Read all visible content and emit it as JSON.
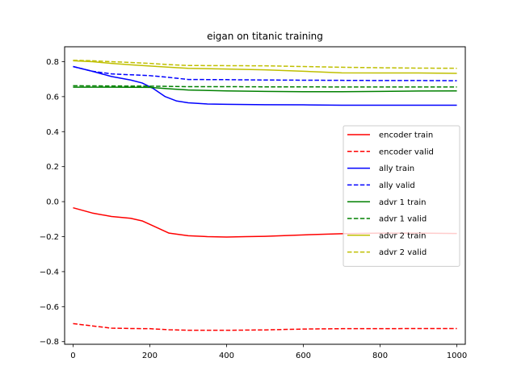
{
  "chart_data": {
    "type": "line",
    "title": "eigan on titanic training",
    "xlabel": "",
    "ylabel": "",
    "xlim": [
      -22,
      1022
    ],
    "ylim": [
      -0.815,
      0.885
    ],
    "xticks": [
      0,
      200,
      400,
      600,
      800,
      1000
    ],
    "yticks": [
      -0.8,
      -0.6,
      -0.4,
      -0.2,
      0.0,
      0.2,
      0.4,
      0.6,
      0.8
    ],
    "xtick_labels": [
      "0",
      "200",
      "400",
      "600",
      "800",
      "1000"
    ],
    "ytick_labels": [
      "−0.8",
      "−0.6",
      "−0.4",
      "−0.2",
      "0.0",
      "0.2",
      "0.4",
      "0.6",
      "0.8"
    ],
    "grid": false,
    "legend_position": "center-right",
    "series": [
      {
        "name": "encoder train",
        "color": "#ff0000",
        "dash": "solid",
        "x": [
          0,
          50,
          100,
          150,
          180,
          210,
          250,
          300,
          350,
          400,
          450,
          500,
          600,
          700,
          800,
          900,
          1000
        ],
        "y": [
          -0.035,
          -0.065,
          -0.085,
          -0.095,
          -0.11,
          -0.14,
          -0.18,
          -0.195,
          -0.2,
          -0.202,
          -0.2,
          -0.198,
          -0.19,
          -0.183,
          -0.18,
          -0.18,
          -0.182
        ]
      },
      {
        "name": "encoder valid",
        "color": "#ff0000",
        "dash": "dashed",
        "x": [
          0,
          50,
          100,
          150,
          200,
          250,
          300,
          400,
          500,
          600,
          700,
          800,
          900,
          1000
        ],
        "y": [
          -0.697,
          -0.71,
          -0.723,
          -0.725,
          -0.726,
          -0.732,
          -0.735,
          -0.735,
          -0.733,
          -0.728,
          -0.726,
          -0.726,
          -0.725,
          -0.725
        ]
      },
      {
        "name": "ally train",
        "color": "#0000ff",
        "dash": "solid",
        "x": [
          0,
          50,
          100,
          150,
          180,
          210,
          240,
          270,
          300,
          350,
          400,
          500,
          600,
          700,
          800,
          900,
          1000
        ],
        "y": [
          0.772,
          0.745,
          0.715,
          0.695,
          0.678,
          0.645,
          0.6,
          0.575,
          0.565,
          0.558,
          0.556,
          0.554,
          0.553,
          0.551,
          0.551,
          0.551,
          0.551
        ]
      },
      {
        "name": "ally valid",
        "color": "#0000ff",
        "dash": "dashed",
        "x": [
          0,
          50,
          100,
          150,
          200,
          250,
          300,
          400,
          500,
          600,
          700,
          800,
          900,
          1000
        ],
        "y": [
          0.772,
          0.745,
          0.73,
          0.725,
          0.72,
          0.71,
          0.698,
          0.697,
          0.695,
          0.694,
          0.693,
          0.692,
          0.692,
          0.691
        ]
      },
      {
        "name": "advr 1 train",
        "color": "#008000",
        "dash": "solid",
        "x": [
          0,
          100,
          200,
          250,
          300,
          400,
          500,
          600,
          700,
          800,
          900,
          1000
        ],
        "y": [
          0.654,
          0.654,
          0.653,
          0.645,
          0.638,
          0.633,
          0.63,
          0.628,
          0.628,
          0.63,
          0.632,
          0.633
        ]
      },
      {
        "name": "advr 1 valid",
        "color": "#008000",
        "dash": "dashed",
        "x": [
          0,
          100,
          200,
          300,
          400,
          500,
          600,
          700,
          800,
          900,
          1000
        ],
        "y": [
          0.662,
          0.661,
          0.66,
          0.657,
          0.657,
          0.656,
          0.656,
          0.655,
          0.655,
          0.655,
          0.655
        ]
      },
      {
        "name": "advr 2 train",
        "color": "#bfbf00",
        "dash": "solid",
        "x": [
          0,
          50,
          100,
          150,
          200,
          250,
          300,
          400,
          500,
          600,
          700,
          800,
          900,
          1000
        ],
        "y": [
          0.805,
          0.8,
          0.79,
          0.782,
          0.775,
          0.768,
          0.762,
          0.758,
          0.753,
          0.745,
          0.736,
          0.735,
          0.735,
          0.733
        ]
      },
      {
        "name": "advr 2 valid",
        "color": "#bfbf00",
        "dash": "dashed",
        "x": [
          0,
          50,
          100,
          150,
          200,
          250,
          300,
          400,
          500,
          600,
          700,
          800,
          900,
          1000
        ],
        "y": [
          0.808,
          0.805,
          0.8,
          0.795,
          0.79,
          0.783,
          0.778,
          0.777,
          0.776,
          0.772,
          0.768,
          0.765,
          0.763,
          0.762
        ]
      }
    ]
  }
}
